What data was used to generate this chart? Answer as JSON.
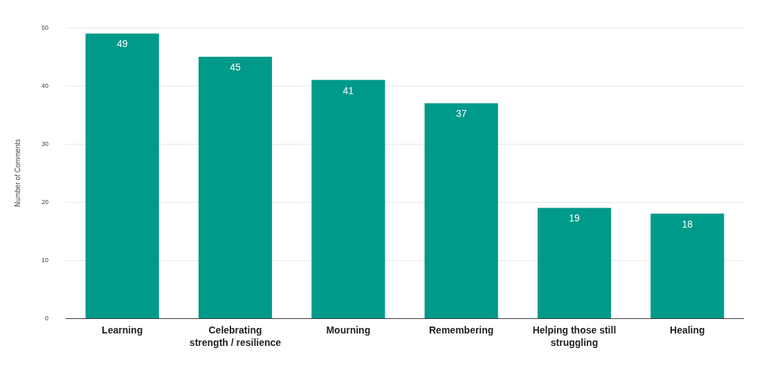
{
  "chart_data": {
    "type": "bar",
    "categories": [
      "Learning",
      "Celebrating\nstrength / resilience",
      "Mourning",
      "Remembering",
      "Helping those still\nstruggling",
      "Healing"
    ],
    "values": [
      49,
      45,
      41,
      37,
      19,
      18
    ],
    "color": "#009a8a",
    "ylabel": "Number of Comments",
    "ylim": [
      0,
      50
    ],
    "yticks": [
      0,
      10,
      20,
      30,
      40,
      50
    ],
    "grid": true,
    "data_labels": true
  }
}
